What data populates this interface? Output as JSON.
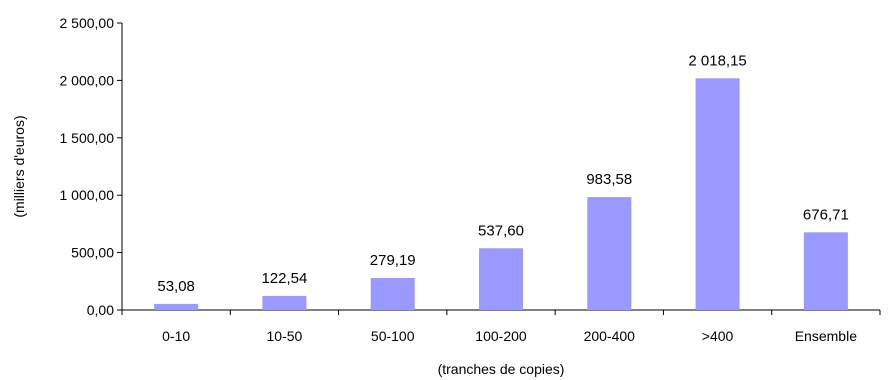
{
  "chart_data": {
    "type": "bar",
    "categories": [
      "0-10",
      "10-50",
      "50-100",
      "100-200",
      "200-400",
      ">400",
      "Ensemble"
    ],
    "values": [
      53.08,
      122.54,
      279.19,
      537.6,
      983.58,
      2018.15,
      676.71
    ],
    "value_labels": [
      "53,08",
      "122,54",
      "279,19",
      "537,60",
      "983,58",
      "2 018,15",
      "676,71"
    ],
    "ylim": [
      0,
      2500
    ],
    "yticks": [
      0,
      500,
      1000,
      1500,
      2000,
      2500
    ],
    "ytick_labels": [
      "0,00",
      "500,00",
      "1 000,00",
      "1 500,00",
      "2 000,00",
      "2 500,00"
    ],
    "xlabel": "(tranches de copies)",
    "ylabel": "(milliers d'euros)",
    "bar_color": "#9999ff",
    "grid": false,
    "legend": "none"
  }
}
